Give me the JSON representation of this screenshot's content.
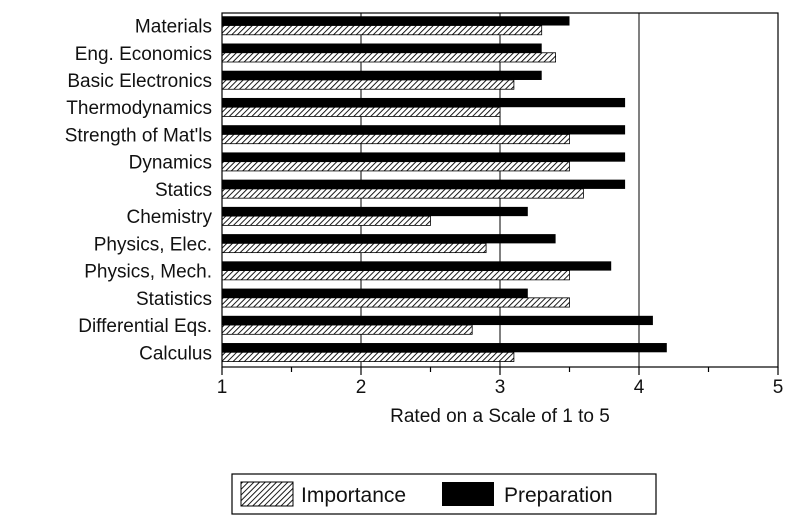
{
  "chart_data": {
    "type": "bar",
    "orientation": "horizontal",
    "categories": [
      "Materials",
      "Eng. Economics",
      "Basic Electronics",
      "Thermodynamics",
      "Strength of Mat'ls",
      "Dynamics",
      "Statics",
      "Chemistry",
      "Physics, Elec.",
      "Physics, Mech.",
      "Statistics",
      "Differential Eqs.",
      "Calculus"
    ],
    "series": [
      {
        "name": "Preparation",
        "pattern": "solid",
        "color": "#000000",
        "values": [
          3.5,
          3.3,
          3.3,
          3.9,
          3.9,
          3.9,
          3.9,
          3.2,
          3.4,
          3.8,
          3.2,
          4.1,
          4.2
        ]
      },
      {
        "name": "Importance",
        "pattern": "hatched",
        "color": "#000000",
        "values": [
          3.3,
          3.4,
          3.1,
          3.0,
          3.5,
          3.5,
          3.6,
          2.5,
          2.9,
          3.5,
          3.5,
          2.8,
          3.1
        ]
      }
    ],
    "x_ticks": [
      "1",
      "2",
      "3",
      "4",
      "5"
    ],
    "xlim": [
      1,
      5
    ],
    "xlabel": "Rated on a Scale of 1 to 5",
    "ylabel": "",
    "title": "",
    "grid": "vertical lines at 2, 3, 4",
    "legend": {
      "position": "bottom-center",
      "entries": [
        "Importance",
        "Preparation"
      ]
    }
  }
}
